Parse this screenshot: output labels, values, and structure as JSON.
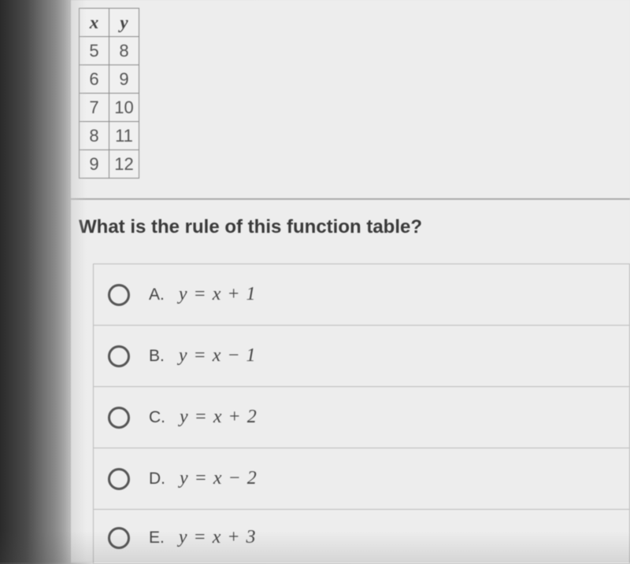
{
  "table": {
    "headers": [
      "x",
      "y"
    ],
    "rows": [
      [
        "5",
        "8"
      ],
      [
        "6",
        "9"
      ],
      [
        "7",
        "10"
      ],
      [
        "8",
        "11"
      ],
      [
        "9",
        "12"
      ]
    ]
  },
  "question": "What is the rule of this function table?",
  "options": [
    {
      "letter": "A.",
      "formula": "y = x + 1"
    },
    {
      "letter": "B.",
      "formula": "y = x − 1"
    },
    {
      "letter": "C.",
      "formula": "y = x + 2"
    },
    {
      "letter": "D.",
      "formula": "y = x − 2"
    },
    {
      "letter": "E.",
      "formula": "y = x + 3"
    }
  ]
}
